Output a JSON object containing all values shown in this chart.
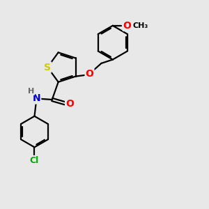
{
  "bg_color": "#e8e8e8",
  "bond_color": "#000000",
  "bond_width": 1.6,
  "atom_colors": {
    "S": "#cccc00",
    "O": "#ff0000",
    "N": "#0000cc",
    "Cl": "#00aa00",
    "H": "#666666",
    "C": "#000000"
  },
  "font_size": 9,
  "fig_size": [
    3.0,
    3.0
  ],
  "dpi": 100
}
